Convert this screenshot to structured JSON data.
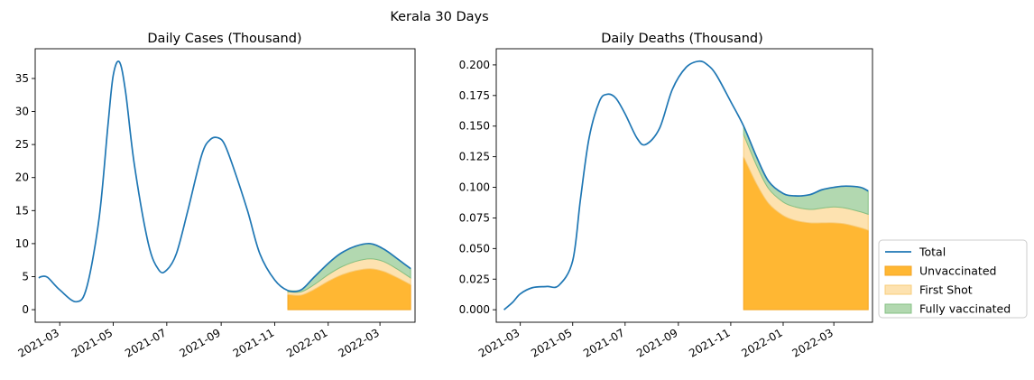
{
  "figure": {
    "suptitle": "Kerala 30 Days"
  },
  "legend": {
    "placement": "right-outside",
    "entries": [
      {
        "label": "Total",
        "kind": "line",
        "color": "#1f77b4"
      },
      {
        "label": "Unvaccinated",
        "kind": "area",
        "color": "#ffb733",
        "edge": "#f5a623"
      },
      {
        "label": "First Shot",
        "kind": "area",
        "color": "#fde2b0",
        "edge": "#f8cc7a"
      },
      {
        "label": "Fully vaccinated",
        "kind": "area",
        "color": "#b2d8b0",
        "edge": "#86c084"
      }
    ]
  },
  "chart_data": [
    {
      "type": "area",
      "title": "Daily Cases (Thousand)",
      "xlabel": "",
      "ylabel": "",
      "x_range": [
        "2021-02-01",
        "2022-04-10"
      ],
      "ylim": [
        -1.9,
        39.5
      ],
      "y_ticks": [
        0,
        5,
        10,
        15,
        20,
        25,
        30,
        35
      ],
      "x_ticks": [
        "2021-03",
        "2021-05",
        "2021-07",
        "2021-09",
        "2021-11",
        "2022-01",
        "2022-03"
      ],
      "grid": false,
      "series": [
        {
          "name": "Total",
          "kind": "line",
          "x": [
            "2021-02-05",
            "2021-02-08",
            "2021-02-15",
            "2021-03-01",
            "2021-03-20",
            "2021-04-01",
            "2021-04-15",
            "2021-04-25",
            "2021-05-01",
            "2021-05-08",
            "2021-05-15",
            "2021-05-25",
            "2021-06-10",
            "2021-06-22",
            "2021-07-01",
            "2021-07-12",
            "2021-07-25",
            "2021-08-10",
            "2021-08-20",
            "2021-08-29",
            "2021-09-05",
            "2021-09-15",
            "2021-10-01",
            "2021-10-15",
            "2021-11-01",
            "2021-11-16",
            "2021-12-01",
            "2021-12-15",
            "2022-01-01",
            "2022-01-15",
            "2022-02-01",
            "2022-02-18",
            "2022-03-05",
            "2022-03-20",
            "2022-04-05"
          ],
          "y": [
            4.8,
            5.0,
            4.9,
            3.0,
            1.2,
            3.5,
            14.0,
            28.0,
            35.5,
            37.5,
            33.0,
            22.0,
            10.0,
            6.0,
            6.0,
            8.5,
            15.0,
            23.5,
            25.8,
            26.0,
            25.0,
            21.5,
            15.0,
            8.5,
            4.5,
            2.9,
            3.0,
            4.8,
            7.0,
            8.5,
            9.6,
            10.0,
            9.2,
            7.8,
            6.2
          ]
        },
        {
          "name": "Unvaccinated",
          "kind": "stack",
          "x": [
            "2021-11-16",
            "2021-12-01",
            "2021-12-15",
            "2022-01-01",
            "2022-01-15",
            "2022-02-01",
            "2022-02-18",
            "2022-03-05",
            "2022-03-20",
            "2022-04-05"
          ],
          "y": [
            2.3,
            2.2,
            3.0,
            4.3,
            5.2,
            5.9,
            6.2,
            5.8,
            4.9,
            3.8
          ]
        },
        {
          "name": "First Shot",
          "kind": "stack",
          "x": [
            "2021-11-16",
            "2021-12-01",
            "2021-12-15",
            "2022-01-01",
            "2022-01-15",
            "2022-02-01",
            "2022-02-18",
            "2022-03-05",
            "2022-03-20",
            "2022-04-05"
          ],
          "y": [
            0.4,
            0.5,
            0.7,
            1.0,
            1.2,
            1.4,
            1.5,
            1.5,
            1.3,
            1.0
          ]
        },
        {
          "name": "Fully vaccinated",
          "kind": "stack",
          "x": [
            "2021-11-16",
            "2021-12-01",
            "2021-12-15",
            "2022-01-01",
            "2022-01-15",
            "2022-02-01",
            "2022-02-18",
            "2022-03-05",
            "2022-03-20",
            "2022-04-05"
          ],
          "y": [
            0.2,
            0.3,
            1.1,
            1.7,
            2.1,
            2.3,
            2.3,
            1.9,
            1.6,
            1.4
          ]
        }
      ]
    },
    {
      "type": "area",
      "title": "Daily Deaths (Thousand)",
      "xlabel": "",
      "ylabel": "",
      "x_range": [
        "2021-02-01",
        "2022-04-15"
      ],
      "ylim": [
        -0.0102,
        0.2132
      ],
      "y_ticks": [
        0.0,
        0.025,
        0.05,
        0.075,
        0.1,
        0.125,
        0.15,
        0.175,
        0.2
      ],
      "y_tick_labels": [
        "0.000",
        "0.025",
        "0.050",
        "0.075",
        "0.100",
        "0.125",
        "0.150",
        "0.175",
        "0.200"
      ],
      "x_ticks": [
        "2021-03",
        "2021-05",
        "2021-07",
        "2021-09",
        "2021-11",
        "2022-01",
        "2022-03"
      ],
      "grid": false,
      "series": [
        {
          "name": "Total",
          "kind": "line",
          "x": [
            "2021-02-10",
            "2021-02-20",
            "2021-03-01",
            "2021-03-15",
            "2021-04-01",
            "2021-04-15",
            "2021-05-01",
            "2021-05-10",
            "2021-05-20",
            "2021-06-01",
            "2021-06-10",
            "2021-06-20",
            "2021-07-01",
            "2021-07-15",
            "2021-07-25",
            "2021-08-10",
            "2021-08-25",
            "2021-09-10",
            "2021-09-25",
            "2021-10-05",
            "2021-10-15",
            "2021-11-01",
            "2021-11-16",
            "2021-12-01",
            "2021-12-15",
            "2022-01-01",
            "2022-01-15",
            "2022-02-01",
            "2022-02-15",
            "2022-03-01",
            "2022-03-15",
            "2022-04-01",
            "2022-04-10"
          ],
          "y": [
            0.0,
            0.006,
            0.013,
            0.018,
            0.019,
            0.02,
            0.04,
            0.09,
            0.14,
            0.17,
            0.176,
            0.173,
            0.16,
            0.14,
            0.135,
            0.148,
            0.18,
            0.198,
            0.203,
            0.2,
            0.192,
            0.17,
            0.15,
            0.125,
            0.105,
            0.095,
            0.093,
            0.094,
            0.098,
            0.1,
            0.101,
            0.1,
            0.097
          ]
        },
        {
          "name": "Unvaccinated",
          "kind": "stack",
          "x": [
            "2021-11-16",
            "2021-12-01",
            "2021-12-15",
            "2022-01-01",
            "2022-01-15",
            "2022-02-01",
            "2022-02-15",
            "2022-03-01",
            "2022-03-15",
            "2022-04-01",
            "2022-04-10"
          ],
          "y": [
            0.125,
            0.103,
            0.087,
            0.077,
            0.073,
            0.071,
            0.071,
            0.071,
            0.07,
            0.067,
            0.065
          ]
        },
        {
          "name": "First Shot",
          "kind": "stack",
          "x": [
            "2021-11-16",
            "2021-12-01",
            "2021-12-15",
            "2022-01-01",
            "2022-01-15",
            "2022-02-01",
            "2022-02-15",
            "2022-03-01",
            "2022-03-15",
            "2022-04-01",
            "2022-04-10"
          ],
          "y": [
            0.018,
            0.015,
            0.012,
            0.011,
            0.011,
            0.011,
            0.012,
            0.013,
            0.013,
            0.013,
            0.013
          ]
        },
        {
          "name": "Fully vaccinated",
          "kind": "stack",
          "x": [
            "2021-11-16",
            "2021-12-01",
            "2021-12-15",
            "2022-01-01",
            "2022-01-15",
            "2022-02-01",
            "2022-02-15",
            "2022-03-01",
            "2022-03-15",
            "2022-04-01",
            "2022-04-10"
          ],
          "y": [
            0.007,
            0.007,
            0.006,
            0.007,
            0.009,
            0.012,
            0.015,
            0.016,
            0.018,
            0.02,
            0.019
          ]
        }
      ]
    }
  ]
}
